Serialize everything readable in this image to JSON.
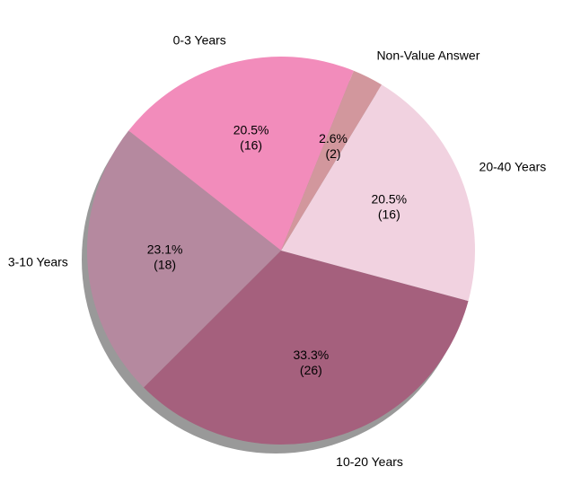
{
  "chart_data": {
    "type": "pie",
    "title": "",
    "slices": [
      {
        "label": "0-3 Years",
        "value": 16,
        "percent_text": "20.5%",
        "count_text": "(16)",
        "color": "#f28cbb"
      },
      {
        "label": "3-10 Years",
        "value": 18,
        "percent_text": "23.1%",
        "count_text": "(18)",
        "color": "#b5899f"
      },
      {
        "label": "10-20 Years",
        "value": 26,
        "percent_text": "33.3%",
        "count_text": "(26)",
        "color": "#a5607d"
      },
      {
        "label": "20-40 Years",
        "value": 16,
        "percent_text": "20.5%",
        "count_text": "(16)",
        "color": "#f1d2e0"
      },
      {
        "label": "Non-Value Answer",
        "value": 2,
        "percent_text": "2.6%",
        "count_text": "(2)",
        "color": "#d2979d"
      }
    ],
    "start_angle_deg": 68,
    "direction": "counterclockwise",
    "shadow": true
  }
}
